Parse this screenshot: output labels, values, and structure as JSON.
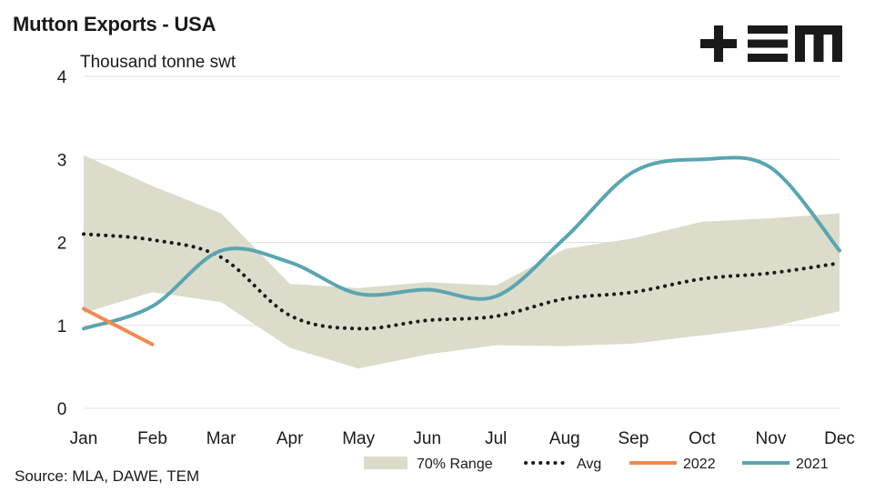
{
  "header": {
    "title": "Mutton Exports - USA",
    "unit_label": "Thousand tonne swt",
    "logo_text": "+ΞM"
  },
  "footer": {
    "source": "Source: MLA, DAWE, TEM"
  },
  "colors": {
    "range_fill": "#dcdccb",
    "avg": "#1a1a1a",
    "series_2022": "#f08a50",
    "series_2021": "#5aa5b0",
    "grid": "#e2e2e2"
  },
  "chart_data": {
    "type": "line",
    "title": "Mutton Exports - USA",
    "ylabel": "Thousand tonne swt",
    "xlabel": "",
    "categories": [
      "Jan",
      "Feb",
      "Mar",
      "Apr",
      "May",
      "Jun",
      "Jul",
      "Aug",
      "Sep",
      "Oct",
      "Nov",
      "Dec"
    ],
    "ylim": [
      0,
      4
    ],
    "yticks": [
      0,
      1,
      2,
      3,
      4
    ],
    "grid": "horizontal",
    "legend_position": "bottom",
    "range": {
      "name": "70% Range",
      "upper": [
        3.05,
        2.68,
        2.35,
        1.5,
        1.45,
        1.52,
        1.48,
        1.92,
        2.05,
        2.25,
        2.29,
        2.35
      ],
      "lower": [
        1.15,
        1.4,
        1.28,
        0.73,
        0.48,
        0.65,
        0.76,
        0.75,
        0.78,
        0.88,
        0.98,
        1.17
      ]
    },
    "series": [
      {
        "name": "Avg",
        "style": "dotted",
        "values": [
          2.1,
          2.03,
          1.82,
          1.12,
          0.96,
          1.06,
          1.11,
          1.32,
          1.4,
          1.56,
          1.63,
          1.75
        ]
      },
      {
        "name": "2022",
        "style": "solid",
        "values": [
          1.2,
          0.77,
          null,
          null,
          null,
          null,
          null,
          null,
          null,
          null,
          null,
          null
        ]
      },
      {
        "name": "2021",
        "style": "solid",
        "values": [
          0.96,
          1.23,
          1.9,
          1.76,
          1.38,
          1.43,
          1.35,
          2.05,
          2.85,
          3.0,
          2.9,
          1.9
        ]
      }
    ]
  }
}
